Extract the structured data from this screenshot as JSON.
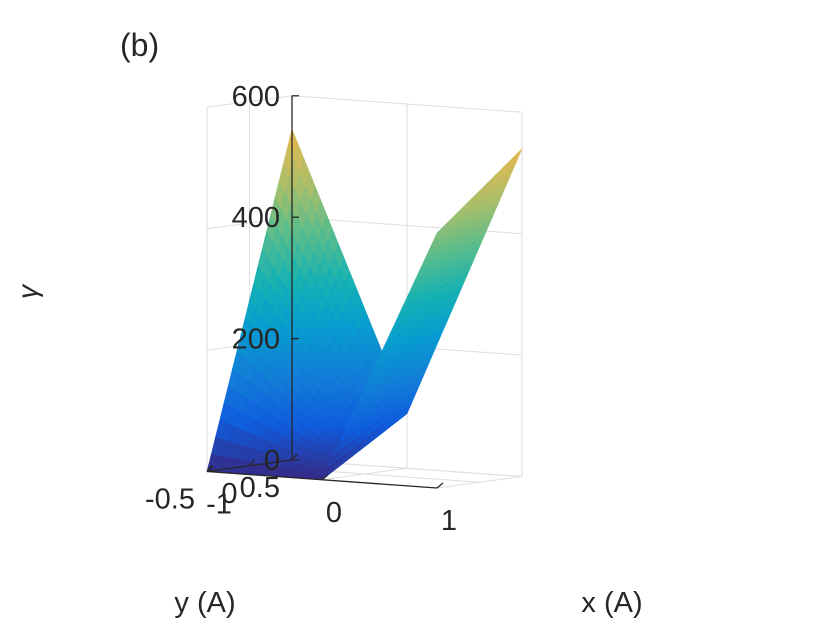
{
  "panel_label": "(b)",
  "chart_data": {
    "type": "surface",
    "title": "",
    "xlabel": "x (A)",
    "ylabel": "y (A)",
    "zlabel": "γ",
    "xlim": [
      -1,
      1
    ],
    "ylim": [
      -0.5,
      0.5
    ],
    "zlim": [
      0,
      600
    ],
    "xticks": [
      -1,
      0,
      1
    ],
    "xtick_labels": [
      "-1",
      "0",
      "1"
    ],
    "yticks": [
      -0.5,
      0,
      0.5
    ],
    "ytick_labels": [
      "-0.5",
      "0",
      "0.5"
    ],
    "zticks": [
      0,
      200,
      400,
      600
    ],
    "ztick_labels": [
      "0",
      "200",
      "400",
      "600"
    ],
    "grid": true,
    "colormap": "parula",
    "surface_corner_values": [
      {
        "x": -1,
        "y": 0.5,
        "z": 545
      },
      {
        "x": -1,
        "y": -0.5,
        "z": 0
      },
      {
        "x": 0,
        "y": -0.5,
        "z": 0
      },
      {
        "x": 0,
        "y": 0.5,
        "z": 90
      },
      {
        "x": 1,
        "y": 0.5,
        "z": 540
      },
      {
        "x": 1,
        "y": -0.5,
        "z": 420
      }
    ]
  }
}
